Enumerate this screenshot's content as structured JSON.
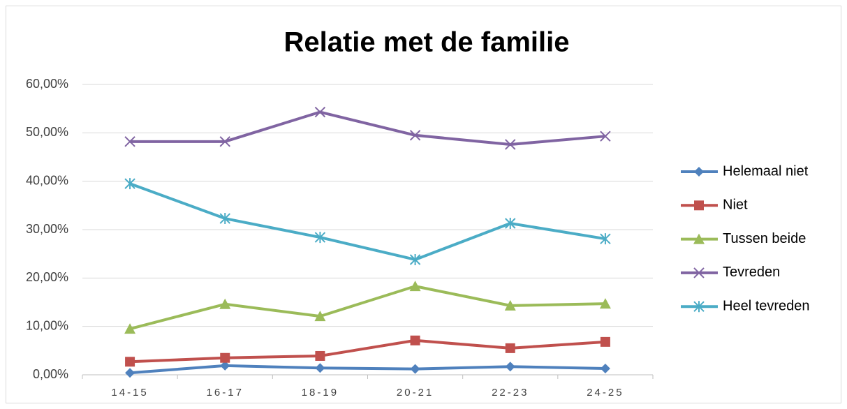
{
  "chart_data": {
    "type": "line",
    "title": "Relatie met de familie",
    "categories": [
      "14-15",
      "16-17",
      "18-19",
      "20-21",
      "22-23",
      "24-25"
    ],
    "series": [
      {
        "name": "Helemaal niet",
        "color": "#4f81bd",
        "marker": "diamond",
        "values": [
          0.4,
          1.9,
          1.4,
          1.2,
          1.7,
          1.3
        ]
      },
      {
        "name": "Niet",
        "color": "#c0504d",
        "marker": "square",
        "values": [
          2.7,
          3.5,
          3.9,
          7.1,
          5.5,
          6.8
        ]
      },
      {
        "name": "Tussen beide",
        "color": "#9bbb59",
        "marker": "triangle",
        "values": [
          9.5,
          14.6,
          12.1,
          18.3,
          14.3,
          14.7
        ]
      },
      {
        "name": "Tevreden",
        "color": "#8064a2",
        "marker": "x",
        "values": [
          48.2,
          48.2,
          54.3,
          49.5,
          47.6,
          49.3
        ]
      },
      {
        "name": "Heel tevreden",
        "color": "#4bacc6",
        "marker": "asterisk",
        "values": [
          39.5,
          32.3,
          28.4,
          23.8,
          31.3,
          28.1
        ]
      }
    ],
    "ylim": [
      0,
      60
    ],
    "yticks": [
      {
        "value": 0,
        "label": "0,00%"
      },
      {
        "value": 10,
        "label": "10,00%"
      },
      {
        "value": 20,
        "label": "20,00%"
      },
      {
        "value": 30,
        "label": "30,00%"
      },
      {
        "value": 40,
        "label": "40,00%"
      },
      {
        "value": 50,
        "label": "50,00%"
      },
      {
        "value": 60,
        "label": "60,00%"
      }
    ],
    "grid": true,
    "legend": "right"
  }
}
